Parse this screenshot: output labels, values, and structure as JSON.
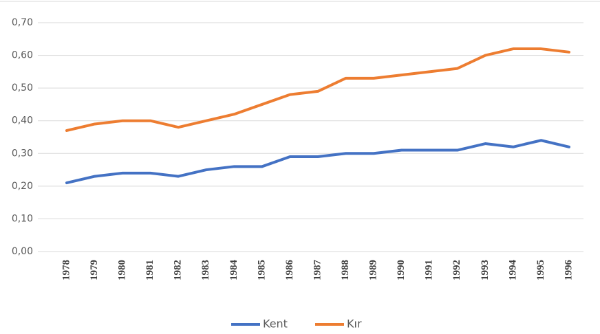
{
  "chart_data": {
    "type": "line",
    "categories": [
      "1978",
      "1979",
      "1980",
      "1981",
      "1982",
      "1983",
      "1984",
      "1985",
      "1986",
      "1987",
      "1988",
      "1989",
      "1990",
      "1991",
      "1992",
      "1993",
      "1994",
      "1995",
      "1996"
    ],
    "series": [
      {
        "name": "Kent",
        "color": "#4472c4",
        "values": [
          0.21,
          0.23,
          0.24,
          0.24,
          0.23,
          0.25,
          0.26,
          0.26,
          0.29,
          0.29,
          0.3,
          0.3,
          0.31,
          0.31,
          0.31,
          0.33,
          0.32,
          0.34,
          0.32
        ]
      },
      {
        "name": "Kır",
        "color": "#ed7d31",
        "values": [
          0.37,
          0.39,
          0.4,
          0.4,
          0.38,
          0.4,
          0.42,
          0.45,
          0.48,
          0.49,
          0.53,
          0.53,
          0.54,
          0.55,
          0.56,
          0.6,
          0.62,
          0.62,
          0.61
        ]
      }
    ],
    "ylim": [
      0,
      0.7
    ],
    "yticks": [
      {
        "value": 0,
        "label": "0,00"
      },
      {
        "value": 0.1,
        "label": "0,10"
      },
      {
        "value": 0.2,
        "label": "0,20"
      },
      {
        "value": 0.3,
        "label": "0,30"
      },
      {
        "value": 0.4,
        "label": "0,40"
      },
      {
        "value": 0.5,
        "label": "0,50"
      },
      {
        "value": 0.6,
        "label": "0,60"
      },
      {
        "value": 0.7,
        "label": "0,70"
      }
    ],
    "grid": true,
    "legend": "bottom"
  }
}
